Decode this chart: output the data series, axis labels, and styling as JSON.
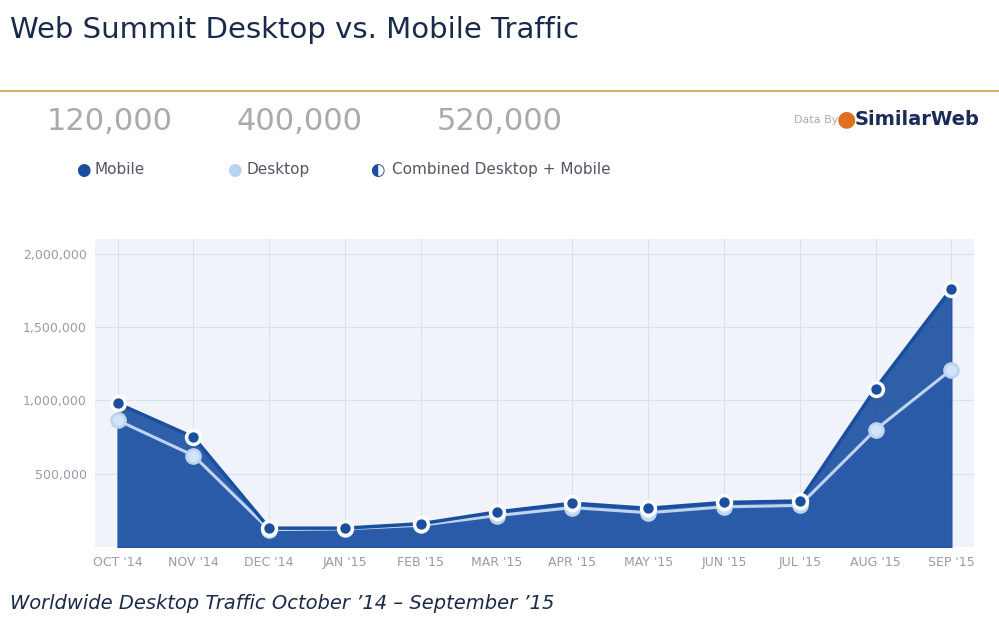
{
  "title": "Web Summit Desktop vs. Mobile Traffic",
  "subtitle": "Worldwide Desktop Traffic October ’14 – September ’15",
  "background_color": "#ffffff",
  "plot_background_color": "#f0f4fa",
  "title_color": "#1a2a4a",
  "divider_color": "#c8a84b",
  "labels": [
    "OCT '14",
    "NOV '14",
    "DEC '14",
    "JAN '15",
    "FEB '15",
    "MAR '15",
    "APR '15",
    "MAY '15",
    "JUN '15",
    "JUL '15",
    "AUG '15",
    "SEP '15"
  ],
  "mobile_data": [
    980000,
    750000,
    130000,
    130000,
    160000,
    240000,
    300000,
    265000,
    305000,
    315000,
    1080000,
    1760000
  ],
  "desktop_data": [
    865000,
    625000,
    120000,
    125000,
    150000,
    215000,
    270000,
    235000,
    275000,
    285000,
    800000,
    1210000
  ],
  "mobile_fill_color": "#1a4fa0",
  "desktop_fill_color": "#aac8f0",
  "mobile_line_color": "#1a4fa0",
  "desktop_line_color": "#c0d4f0",
  "marker_mobile_face": "#1a4fa0",
  "marker_mobile_edge": "#ffffff",
  "marker_desktop_face": "#d0e4f8",
  "marker_desktop_edge": "#c0d4f0",
  "ylim": [
    0,
    2100000
  ],
  "yticks": [
    500000,
    1000000,
    1500000,
    2000000
  ],
  "grid_color": "#d8e2ee",
  "axis_label_color": "#999aaa",
  "stat_mobile": "120,000",
  "stat_desktop": "400,000",
  "stat_combined": "520,000",
  "stat_color": "#aaaaaa",
  "legend_mobile_label": "Mobile",
  "legend_desktop_label": "Desktop",
  "legend_combined_label": "Combined Desktop + Mobile",
  "legend_color": "#555566"
}
